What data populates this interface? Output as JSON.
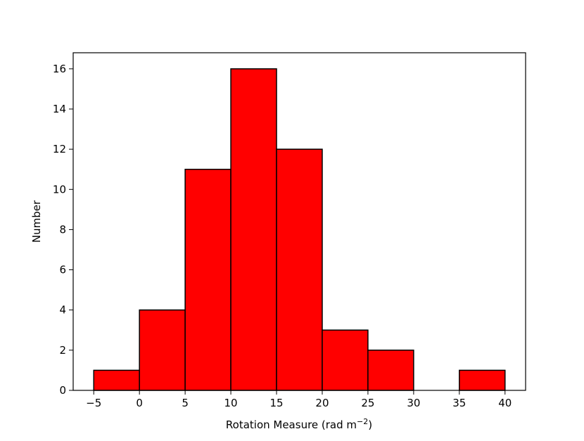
{
  "chart_data": {
    "type": "bar",
    "subtype": "histogram",
    "bin_edges": [
      -5,
      0,
      5,
      10,
      15,
      20,
      25,
      30,
      35,
      40
    ],
    "counts": [
      1,
      4,
      11,
      16,
      12,
      3,
      2,
      0,
      1
    ],
    "xlabel": "Rotation Measure (rad m",
    "xlabel_superscript": "−2",
    "xlabel_suffix": ")",
    "ylabel": "Number",
    "xlim": [
      -7.25,
      42.25
    ],
    "ylim": [
      0,
      16.8
    ],
    "xticks": [
      -5,
      0,
      5,
      10,
      15,
      20,
      25,
      30,
      35,
      40
    ],
    "xtick_labels": [
      "−5",
      "0",
      "5",
      "10",
      "15",
      "20",
      "25",
      "30",
      "35",
      "40"
    ],
    "yticks": [
      0,
      2,
      4,
      6,
      8,
      10,
      12,
      14,
      16
    ],
    "ytick_labels": [
      "0",
      "2",
      "4",
      "6",
      "8",
      "10",
      "12",
      "14",
      "16"
    ],
    "bar_color": "#ff0000",
    "edge_color": "#000000",
    "grid": false,
    "legend": false
  }
}
